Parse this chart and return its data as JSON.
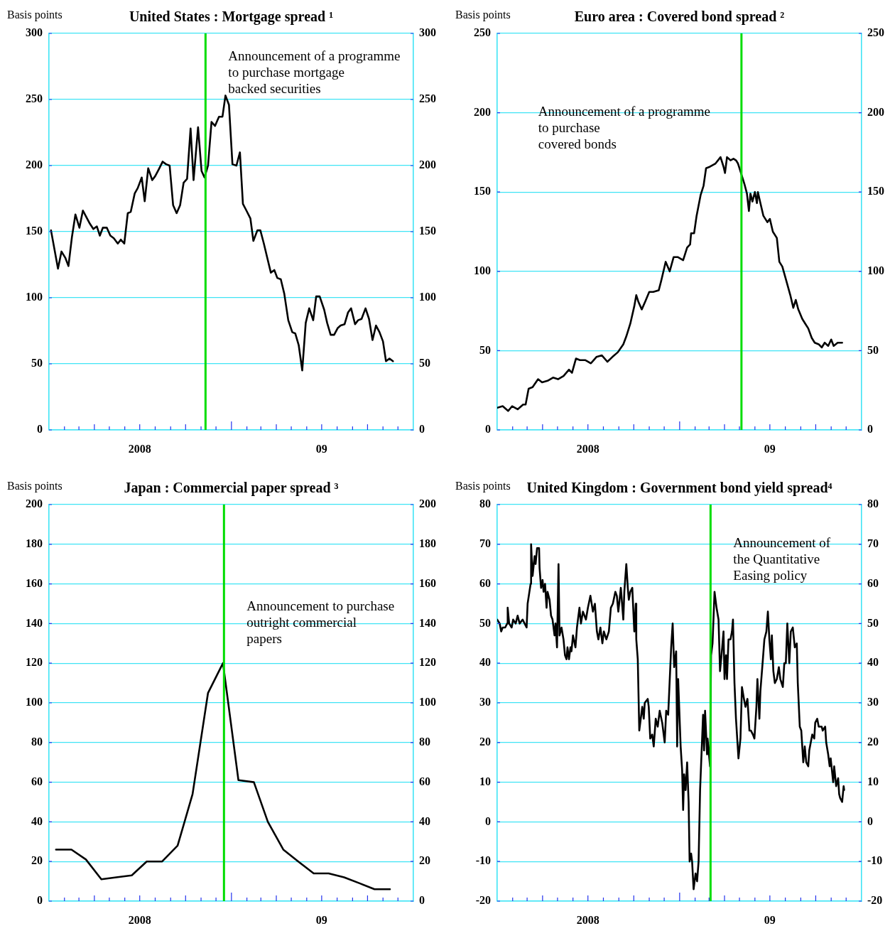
{
  "chart_data": [
    {
      "type": "line",
      "title": "United States : Mortgage spread ¹",
      "ylabel": "Basis points",
      "color": "#000000",
      "x": [
        "2008-01-05",
        "2008-01-19",
        "2008-01-26",
        "2008-02-03",
        "2008-02-09",
        "2008-02-16",
        "2008-02-23",
        "2008-03-02",
        "2008-03-09",
        "2008-03-16",
        "2008-03-23",
        "2008-03-30",
        "2008-04-06",
        "2008-04-12",
        "2008-04-18",
        "2008-04-26",
        "2008-05-03",
        "2008-05-10",
        "2008-05-18",
        "2008-05-24",
        "2008-05-31",
        "2008-06-07",
        "2008-06-13",
        "2008-06-21",
        "2008-06-27",
        "2008-07-05",
        "2008-07-11",
        "2008-07-18",
        "2008-07-26",
        "2008-08-01",
        "2008-08-08",
        "2008-08-16",
        "2008-08-23",
        "2008-08-30",
        "2008-09-06",
        "2008-09-13",
        "2008-09-20",
        "2008-09-27",
        "2008-10-04",
        "2008-10-11",
        "2008-10-17",
        "2008-10-26",
        "2008-11-02",
        "2008-11-08",
        "2008-11-15",
        "2008-11-22",
        "2008-11-29",
        "2008-12-07",
        "2008-12-14",
        "2008-12-20",
        "2008-12-27",
        "2009-01-03",
        "2009-01-11",
        "2009-01-18",
        "2009-01-24",
        "2009-01-31",
        "2009-02-08",
        "2009-02-14",
        "2009-02-22",
        "2009-02-28",
        "2009-03-07",
        "2009-03-14",
        "2009-03-21",
        "2009-03-28",
        "2009-04-03",
        "2009-04-10",
        "2009-04-17",
        "2009-04-25",
        "2009-05-03",
        "2009-05-09",
        "2009-05-16",
        "2009-05-23",
        "2009-05-30",
        "2009-06-06",
        "2009-06-14",
        "2009-06-20",
        "2009-06-27",
        "2009-07-06",
        "2009-07-12",
        "2009-07-19",
        "2009-07-26",
        "2009-08-02",
        "2009-08-08",
        "2009-08-16",
        "2009-08-23",
        "2009-08-29",
        "2009-09-06",
        "2009-09-12",
        "2009-09-19",
        "2009-09-27",
        "2009-10-04",
        "2009-10-11",
        "2009-10-18",
        "2009-10-25",
        "2009-11-01",
        "2009-11-07",
        "2009-11-14",
        "2009-11-21"
      ],
      "values": [
        151,
        122,
        135,
        130,
        124,
        146,
        163,
        153,
        166,
        161,
        156,
        152,
        154,
        147,
        153,
        153,
        147,
        145,
        141,
        144,
        141,
        164,
        165,
        179,
        183,
        191,
        173,
        198,
        189,
        192,
        197,
        203,
        201,
        200,
        170,
        164,
        170,
        187,
        190,
        228,
        189,
        229,
        196,
        191,
        200,
        233,
        230,
        237,
        237,
        253,
        246,
        201,
        200,
        210,
        171,
        166,
        160,
        143,
        151,
        151,
        141,
        130,
        119,
        121,
        115,
        114,
        103,
        83,
        74,
        73,
        64,
        45,
        81,
        92,
        83,
        101,
        101,
        91,
        81,
        72,
        72,
        77,
        79,
        80,
        89,
        92,
        80,
        83,
        84,
        92,
        84,
        68,
        79,
        74,
        67,
        52,
        54,
        52
      ],
      "xlim": [
        "2008-01-01",
        "2010-01-01"
      ],
      "xticks": [
        {
          "value": "2008-02-01",
          "label": null
        },
        {
          "value": "2008-03-01",
          "label": null
        },
        {
          "value": "2008-04-01",
          "label": null
        },
        {
          "value": "2008-05-01",
          "label": null
        },
        {
          "value": "2008-06-01",
          "label": null
        },
        {
          "value": "2008-07-01",
          "label": "2008"
        },
        {
          "value": "2008-08-01",
          "label": null
        },
        {
          "value": "2008-09-01",
          "label": null
        },
        {
          "value": "2008-10-01",
          "label": null
        },
        {
          "value": "2008-11-01",
          "label": null
        },
        {
          "value": "2008-12-01",
          "label": null
        },
        {
          "value": "2009-01-01",
          "label": null
        },
        {
          "value": "2009-02-01",
          "label": null
        },
        {
          "value": "2009-03-01",
          "label": null
        },
        {
          "value": "2009-04-01",
          "label": null
        },
        {
          "value": "2009-05-01",
          "label": null
        },
        {
          "value": "2009-06-01",
          "label": null
        },
        {
          "value": "2009-07-01",
          "label": "09"
        },
        {
          "value": "2009-08-01",
          "label": null
        },
        {
          "value": "2009-09-01",
          "label": null
        },
        {
          "value": "2009-10-01",
          "label": null
        },
        {
          "value": "2009-11-01",
          "label": null
        },
        {
          "value": "2009-12-01",
          "label": null
        }
      ],
      "ylim": [
        0,
        300
      ],
      "yticks": [
        0,
        50,
        100,
        150,
        200,
        250,
        300
      ],
      "y2lim": [
        0,
        300
      ],
      "y2ticks": [
        0,
        50,
        100,
        150,
        200,
        250,
        300
      ],
      "grid": "y",
      "ref_lines": [
        {
          "axis": "x",
          "value": "2008-11-10",
          "color": "#00dd00"
        }
      ],
      "annotations": [
        {
          "text": "Announcement of a programme\nto purchase mortgage\nbacked securities",
          "x": "2008-11-10",
          "y": 270
        }
      ]
    },
    {
      "type": "line",
      "title": "Euro area : Covered bond spread ²",
      "ylabel": "Basis points",
      "color": "#000000",
      "x": [
        "2008-01-01",
        "2008-01-12",
        "2008-01-23",
        "2008-01-31",
        "2008-02-11",
        "2008-02-22",
        "2008-02-27",
        "2008-03-04",
        "2008-03-12",
        "2008-03-23",
        "2008-03-31",
        "2008-04-11",
        "2008-04-22",
        "2008-05-02",
        "2008-05-13",
        "2008-05-24",
        "2008-05-30",
        "2008-06-07",
        "2008-06-15",
        "2008-06-26",
        "2008-07-07",
        "2008-07-18",
        "2008-07-29",
        "2008-08-09",
        "2008-08-19",
        "2008-08-30",
        "2008-09-10",
        "2008-09-16",
        "2008-09-24",
        "2008-10-02",
        "2008-10-06",
        "2008-10-10",
        "2008-10-17",
        "2008-10-24",
        "2008-11-01",
        "2008-11-09",
        "2008-11-20",
        "2008-11-25",
        "2008-12-04",
        "2008-12-12",
        "2008-12-20",
        "2008-12-28",
        "2009-01-08",
        "2009-01-16",
        "2009-01-22",
        "2009-01-24",
        "2009-01-30",
        "2009-02-04",
        "2009-02-12",
        "2009-02-18",
        "2009-02-23",
        "2009-03-03",
        "2009-03-14",
        "2009-03-24",
        "2009-03-30",
        "2009-04-02",
        "2009-04-06",
        "2009-04-13",
        "2009-04-19",
        "2009-04-24",
        "2009-04-28",
        "2009-05-01",
        "2009-05-06",
        "2009-05-11",
        "2009-05-16",
        "2009-05-20",
        "2009-05-23",
        "2009-05-27",
        "2009-06-01",
        "2009-06-05",
        "2009-06-07",
        "2009-06-12",
        "2009-06-18",
        "2009-06-26",
        "2009-07-01",
        "2009-07-07",
        "2009-07-15",
        "2009-07-20",
        "2009-07-26",
        "2009-08-03",
        "2009-08-11",
        "2009-08-17",
        "2009-08-22",
        "2009-08-27",
        "2009-09-04",
        "2009-09-10",
        "2009-09-16",
        "2009-09-23",
        "2009-09-29",
        "2009-10-07",
        "2009-10-13",
        "2009-10-19",
        "2009-10-26",
        "2009-11-01",
        "2009-11-06",
        "2009-11-14",
        "2009-11-23"
      ],
      "values": [
        14,
        15,
        12,
        15,
        13,
        16,
        16,
        26,
        27,
        32,
        30,
        31,
        33,
        32,
        34,
        38,
        36,
        45,
        44,
        44,
        42,
        46,
        47,
        43,
        46,
        49,
        54,
        59,
        67,
        78,
        85,
        81,
        76,
        81,
        87,
        87,
        88,
        94,
        106,
        100,
        109,
        109,
        107,
        115,
        117,
        124,
        124,
        135,
        148,
        154,
        165,
        166,
        168,
        172,
        166,
        162,
        172,
        170,
        171,
        170,
        168,
        165,
        160,
        155,
        149,
        138,
        149,
        144,
        150,
        143,
        150,
        143,
        135,
        131,
        133,
        125,
        121,
        106,
        103,
        94,
        85,
        77,
        82,
        76,
        70,
        67,
        64,
        58,
        55,
        54,
        52,
        55,
        53,
        57,
        53,
        55,
        55
      ],
      "xlim": [
        "2008-01-01",
        "2010-01-01"
      ],
      "xticks": [
        {
          "value": "2008-02-01",
          "label": null
        },
        {
          "value": "2008-03-01",
          "label": null
        },
        {
          "value": "2008-04-01",
          "label": null
        },
        {
          "value": "2008-05-01",
          "label": null
        },
        {
          "value": "2008-06-01",
          "label": null
        },
        {
          "value": "2008-07-01",
          "label": "2008"
        },
        {
          "value": "2008-08-01",
          "label": null
        },
        {
          "value": "2008-09-01",
          "label": null
        },
        {
          "value": "2008-10-01",
          "label": null
        },
        {
          "value": "2008-11-01",
          "label": null
        },
        {
          "value": "2008-12-01",
          "label": null
        },
        {
          "value": "2009-01-01",
          "label": null
        },
        {
          "value": "2009-02-01",
          "label": null
        },
        {
          "value": "2009-03-01",
          "label": null
        },
        {
          "value": "2009-04-01",
          "label": null
        },
        {
          "value": "2009-05-01",
          "label": null
        },
        {
          "value": "2009-06-01",
          "label": null
        },
        {
          "value": "2009-07-01",
          "label": "09"
        },
        {
          "value": "2009-08-01",
          "label": null
        },
        {
          "value": "2009-09-01",
          "label": null
        },
        {
          "value": "2009-10-01",
          "label": null
        },
        {
          "value": "2009-11-01",
          "label": null
        },
        {
          "value": "2009-12-01",
          "label": null
        }
      ],
      "ylim": [
        0,
        250
      ],
      "yticks": [
        0,
        50,
        100,
        150,
        200,
        250
      ],
      "y2lim": [
        0,
        250
      ],
      "y2ticks": [
        0,
        50,
        100,
        150,
        200,
        250
      ],
      "grid": "y",
      "ref_lines": [
        {
          "axis": "x",
          "value": "2009-05-05",
          "color": "#00dd00"
        }
      ],
      "annotations": [
        {
          "text": "Announcement of a programme\nto purchase\ncovered bonds",
          "x": "2009-05-05",
          "y": 190
        }
      ]
    },
    {
      "type": "line",
      "title": "Japan : Commercial paper spread ³",
      "ylabel": "Basis points",
      "color": "#000000",
      "x": [
        "2008-01-15",
        "2008-02-15",
        "2008-03-15",
        "2008-04-15",
        "2008-05-15",
        "2008-06-15",
        "2008-07-15",
        "2008-08-15",
        "2008-09-15",
        "2008-10-15",
        "2008-11-15",
        "2008-12-15",
        "2009-01-15",
        "2009-02-15",
        "2009-03-15",
        "2009-04-15",
        "2009-05-15",
        "2009-06-15",
        "2009-07-15",
        "2009-08-15",
        "2009-09-15",
        "2009-10-15",
        "2009-11-15"
      ],
      "values": [
        26,
        26,
        21,
        11,
        12,
        13,
        20,
        20,
        28,
        54,
        105,
        120,
        61,
        60,
        40,
        26,
        20,
        14,
        14,
        12,
        9,
        6,
        6
      ],
      "xlim": [
        "2008-01-01",
        "2010-01-01"
      ],
      "xticks": [
        {
          "value": "2008-02-01",
          "label": null
        },
        {
          "value": "2008-03-01",
          "label": null
        },
        {
          "value": "2008-04-01",
          "label": null
        },
        {
          "value": "2008-05-01",
          "label": null
        },
        {
          "value": "2008-06-01",
          "label": null
        },
        {
          "value": "2008-07-01",
          "label": "2008"
        },
        {
          "value": "2008-08-01",
          "label": null
        },
        {
          "value": "2008-09-01",
          "label": null
        },
        {
          "value": "2008-10-01",
          "label": null
        },
        {
          "value": "2008-11-01",
          "label": null
        },
        {
          "value": "2008-12-01",
          "label": null
        },
        {
          "value": "2009-01-01",
          "label": null
        },
        {
          "value": "2009-02-01",
          "label": null
        },
        {
          "value": "2009-03-01",
          "label": null
        },
        {
          "value": "2009-04-01",
          "label": null
        },
        {
          "value": "2009-05-01",
          "label": null
        },
        {
          "value": "2009-06-01",
          "label": null
        },
        {
          "value": "2009-07-01",
          "label": "09"
        },
        {
          "value": "2009-08-01",
          "label": null
        },
        {
          "value": "2009-09-01",
          "label": null
        },
        {
          "value": "2009-10-01",
          "label": null
        },
        {
          "value": "2009-11-01",
          "label": null
        },
        {
          "value": "2009-12-01",
          "label": null
        }
      ],
      "ylim": [
        0,
        200
      ],
      "yticks": [
        0,
        20,
        40,
        60,
        80,
        100,
        120,
        140,
        160,
        180,
        200
      ],
      "y2lim": [
        0,
        200
      ],
      "y2ticks": [
        0,
        20,
        40,
        60,
        80,
        100,
        120,
        140,
        160,
        180,
        200
      ],
      "grid": "y",
      "ref_lines": [
        {
          "axis": "x",
          "value": "2008-12-17",
          "color": "#00dd00"
        }
      ],
      "annotations": [
        {
          "text": "Announcement to purchase\noutright commercial\npapers",
          "x": "2008-12-17",
          "y": 140
        }
      ]
    },
    {
      "type": "line",
      "title": "United Kingdom : Government bond yield spread⁴",
      "ylabel": "Basis points",
      "color": "#000000",
      "x": [
        "2008-01-01",
        "2008-01-06",
        "2008-01-09",
        "2008-01-12",
        "2008-01-17",
        "2008-01-21",
        "2008-01-22",
        "2008-01-25",
        "2008-01-30",
        "2008-02-02",
        "2008-02-07",
        "2008-02-11",
        "2008-02-15",
        "2008-02-21",
        "2008-02-25",
        "2008-02-29",
        "2008-03-02",
        "2008-03-08",
        "2008-03-09",
        "2008-03-12",
        "2008-03-16",
        "2008-03-18",
        "2008-03-21",
        "2008-03-25",
        "2008-03-26",
        "2008-03-29",
        "2008-04-01",
        "2008-04-03",
        "2008-04-06",
        "2008-04-09",
        "2008-04-11",
        "2008-04-15",
        "2008-04-18",
        "2008-04-21",
        "2008-04-25",
        "2008-04-27",
        "2008-04-30",
        "2008-05-03",
        "2008-05-05",
        "2008-05-09",
        "2008-05-13",
        "2008-05-16",
        "2008-05-19",
        "2008-05-21",
        "2008-05-24",
        "2008-05-27",
        "2008-05-29",
        "2008-06-01",
        "2008-06-06",
        "2008-06-09",
        "2008-06-14",
        "2008-06-17",
        "2008-06-21",
        "2008-06-27",
        "2008-07-01",
        "2008-07-06",
        "2008-07-11",
        "2008-07-15",
        "2008-07-19",
        "2008-07-22",
        "2008-07-26",
        "2008-07-30",
        "2008-08-02",
        "2008-08-07",
        "2008-08-12",
        "2008-08-16",
        "2008-08-20",
        "2008-08-25",
        "2008-08-28",
        "2008-08-31",
        "2008-09-05",
        "2008-09-10",
        "2008-09-12",
        "2008-09-16",
        "2008-09-19",
        "2008-09-21",
        "2008-09-24",
        "2008-09-28",
        "2008-10-02",
        "2008-10-05",
        "2008-10-06",
        "2008-10-09",
        "2008-10-12",
        "2008-10-15",
        "2008-10-18",
        "2008-10-21",
        "2008-10-23",
        "2008-10-29",
        "2008-10-31",
        "2008-11-03",
        "2008-11-07",
        "2008-11-10",
        "2008-11-14",
        "2008-11-18",
        "2008-11-22",
        "2008-11-27",
        "2008-12-02",
        "2008-12-05",
        "2008-12-09",
        "2008-12-15",
        "2008-12-18",
        "2008-12-21",
        "2008-12-25",
        "2008-12-27",
        "2008-12-29",
        "2009-01-03",
        "2009-01-06",
        "2009-01-08",
        "2009-01-10",
        "2009-01-13",
        "2009-01-16",
        "2009-01-19",
        "2009-01-21",
        "2009-01-24",
        "2009-01-26",
        "2009-01-29",
        "2009-02-02",
        "2009-02-05",
        "2009-02-08",
        "2009-02-11",
        "2009-02-17",
        "2009-02-19",
        "2009-02-21",
        "2009-02-25",
        "2009-02-26",
        "2009-03-03",
        "2009-03-05",
        "2009-03-08",
        "2009-03-12",
        "2009-03-16",
        "2009-03-20",
        "2009-03-23",
        "2009-03-26",
        "2009-03-30",
        "2009-04-01",
        "2009-04-04",
        "2009-04-06",
        "2009-04-09",
        "2009-04-13",
        "2009-04-16",
        "2009-04-18",
        "2009-04-21",
        "2009-04-24",
        "2009-04-29",
        "2009-05-03",
        "2009-05-06",
        "2009-05-10",
        "2009-05-13",
        "2009-05-17",
        "2009-05-21",
        "2009-05-24",
        "2009-05-28",
        "2009-05-31",
        "2009-06-04",
        "2009-06-06",
        "2009-06-10",
        "2009-06-12",
        "2009-06-17",
        "2009-06-20",
        "2009-06-24",
        "2009-06-27",
        "2009-06-30",
        "2009-07-03",
        "2009-07-05",
        "2009-07-08",
        "2009-07-11",
        "2009-07-15",
        "2009-07-19",
        "2009-07-22",
        "2009-07-27",
        "2009-07-30",
        "2009-08-02",
        "2009-08-05",
        "2009-08-09",
        "2009-08-12",
        "2009-08-16",
        "2009-08-20",
        "2009-08-24",
        "2009-08-26",
        "2009-08-30",
        "2009-09-02",
        "2009-09-06",
        "2009-09-09",
        "2009-09-12",
        "2009-09-16",
        "2009-09-18",
        "2009-09-24",
        "2009-09-28",
        "2009-09-30",
        "2009-10-04",
        "2009-10-07",
        "2009-10-13",
        "2009-10-15",
        "2009-10-20",
        "2009-10-22",
        "2009-10-26",
        "2009-10-29",
        "2009-10-31",
        "2009-11-05",
        "2009-11-07",
        "2009-11-11",
        "2009-11-15",
        "2009-11-17",
        "2009-11-19",
        "2009-11-23",
        "2009-11-26",
        "2009-11-27"
      ],
      "values": [
        51,
        50,
        48,
        49,
        49,
        50,
        54,
        50,
        49,
        51,
        50,
        52,
        50,
        51,
        50,
        49,
        55,
        60,
        70,
        62,
        67,
        65,
        69,
        69,
        64,
        59,
        61,
        58,
        60,
        54,
        58,
        56,
        52,
        51,
        47,
        50,
        44,
        65,
        47,
        49,
        46,
        42,
        41,
        44,
        41,
        44,
        43,
        47,
        44,
        49,
        54,
        50,
        53,
        51,
        54,
        57,
        53,
        55,
        48,
        46,
        49,
        45,
        48,
        46,
        48,
        54,
        55,
        58,
        57,
        53,
        59,
        51,
        58,
        65,
        59,
        56,
        58,
        59,
        48,
        55,
        46,
        41,
        23,
        26,
        29,
        26,
        30,
        31,
        29,
        21,
        22,
        19,
        26,
        24,
        28,
        25,
        20,
        28,
        27,
        44,
        50,
        39,
        43,
        19,
        36,
        19,
        13,
        3,
        12,
        8,
        15,
        5,
        -10,
        -8,
        -10,
        -17,
        -13,
        -15,
        -10,
        8,
        27,
        18,
        28,
        17,
        21,
        14,
        42,
        45,
        58,
        54,
        51,
        38,
        42,
        48,
        36,
        42,
        36,
        46,
        46,
        48,
        51,
        35,
        26,
        16,
        21,
        34,
        31,
        29,
        31,
        23,
        23,
        22,
        21,
        29,
        36,
        26,
        33,
        41,
        46,
        48,
        53,
        46,
        41,
        47,
        38,
        35,
        36,
        39,
        36,
        34,
        40,
        40,
        50,
        40,
        48,
        49,
        44,
        45,
        35,
        24,
        23,
        15,
        19,
        15,
        14,
        18,
        22,
        21,
        25,
        26,
        24,
        24,
        23,
        24,
        20,
        17,
        14,
        16,
        10,
        14,
        9,
        11,
        7,
        6,
        5,
        9,
        8
      ],
      "xlim": [
        "2008-01-01",
        "2010-01-01"
      ],
      "xticks": [
        {
          "value": "2008-02-01",
          "label": null
        },
        {
          "value": "2008-03-01",
          "label": null
        },
        {
          "value": "2008-04-01",
          "label": null
        },
        {
          "value": "2008-05-01",
          "label": null
        },
        {
          "value": "2008-06-01",
          "label": null
        },
        {
          "value": "2008-07-01",
          "label": "2008"
        },
        {
          "value": "2008-08-01",
          "label": null
        },
        {
          "value": "2008-09-01",
          "label": null
        },
        {
          "value": "2008-10-01",
          "label": null
        },
        {
          "value": "2008-11-01",
          "label": null
        },
        {
          "value": "2008-12-01",
          "label": null
        },
        {
          "value": "2009-01-01",
          "label": null
        },
        {
          "value": "2009-02-01",
          "label": null
        },
        {
          "value": "2009-03-01",
          "label": null
        },
        {
          "value": "2009-04-01",
          "label": null
        },
        {
          "value": "2009-05-01",
          "label": null
        },
        {
          "value": "2009-06-01",
          "label": null
        },
        {
          "value": "2009-07-01",
          "label": "09"
        },
        {
          "value": "2009-08-01",
          "label": null
        },
        {
          "value": "2009-09-01",
          "label": null
        },
        {
          "value": "2009-10-01",
          "label": null
        },
        {
          "value": "2009-11-01",
          "label": null
        },
        {
          "value": "2009-12-01",
          "label": null
        }
      ],
      "ylim": [
        -20,
        80
      ],
      "yticks": [
        -20,
        -10,
        0,
        10,
        20,
        30,
        40,
        50,
        60,
        70,
        80
      ],
      "y2lim": [
        -20,
        80
      ],
      "y2ticks": [
        -20,
        -10,
        0,
        10,
        20,
        30,
        40,
        50,
        60,
        70,
        80
      ],
      "grid": "y",
      "ref_lines": [
        {
          "axis": "x",
          "value": "2009-03-04",
          "color": "#00dd00"
        }
      ],
      "annotations": [
        {
          "text": "Announcement of\nthe Quantitative\nEasing policy",
          "x": "2009-03-04",
          "y": 66
        }
      ]
    }
  ]
}
